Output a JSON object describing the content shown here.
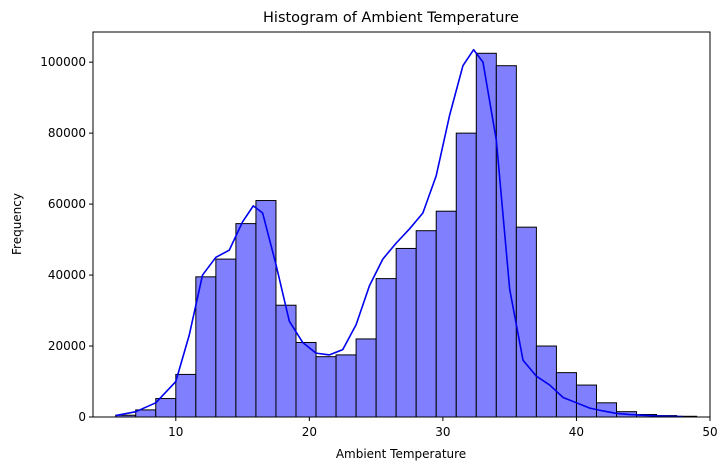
{
  "chart_data": {
    "type": "bar",
    "title": "Histogram of Ambient Temperature",
    "xlabel": "Ambient Temperature",
    "ylabel": "Frequency",
    "xlim": [
      3.8,
      50.0
    ],
    "ylim": [
      0,
      108500
    ],
    "x_ticks": [
      10,
      20,
      30,
      40,
      50
    ],
    "y_ticks": [
      0,
      20000,
      40000,
      60000,
      80000,
      100000
    ],
    "bin_width": 1.5,
    "bin_edges_start": 5.5,
    "values": [
      500,
      2000,
      5200,
      12000,
      39500,
      44500,
      54500,
      61000,
      31500,
      21000,
      17000,
      17500,
      22000,
      39000,
      47500,
      52500,
      58000,
      80000,
      102500,
      99000,
      53500,
      20000,
      12500,
      9000,
      4000,
      1500,
      700,
      400,
      200
    ],
    "kde": {
      "x": [
        5.5,
        7,
        8.5,
        10,
        11,
        12,
        13,
        14,
        15,
        15.8,
        16.5,
        17.5,
        18.5,
        19.5,
        20.5,
        21.5,
        22.5,
        23.5,
        24.5,
        25.5,
        26.5,
        27.5,
        28.5,
        29.5,
        30.5,
        31.5,
        32.3,
        33,
        34,
        35,
        36,
        37,
        38,
        39,
        40,
        41,
        42,
        43,
        44,
        46,
        48
      ],
      "y": [
        400,
        1500,
        4000,
        10000,
        23000,
        40000,
        45000,
        47000,
        55000,
        59500,
        57500,
        43000,
        27000,
        21000,
        18000,
        17500,
        19000,
        26000,
        37000,
        44500,
        49000,
        53000,
        57500,
        68000,
        85000,
        99000,
        103500,
        100000,
        78000,
        36000,
        16000,
        11500,
        9000,
        5500,
        4000,
        2500,
        1700,
        1000,
        700,
        300,
        100
      ]
    },
    "grid": false,
    "colors": {
      "bar_fill": "#8080ff",
      "bar_edge": "#000000",
      "kde_line": "#0000ee"
    }
  }
}
